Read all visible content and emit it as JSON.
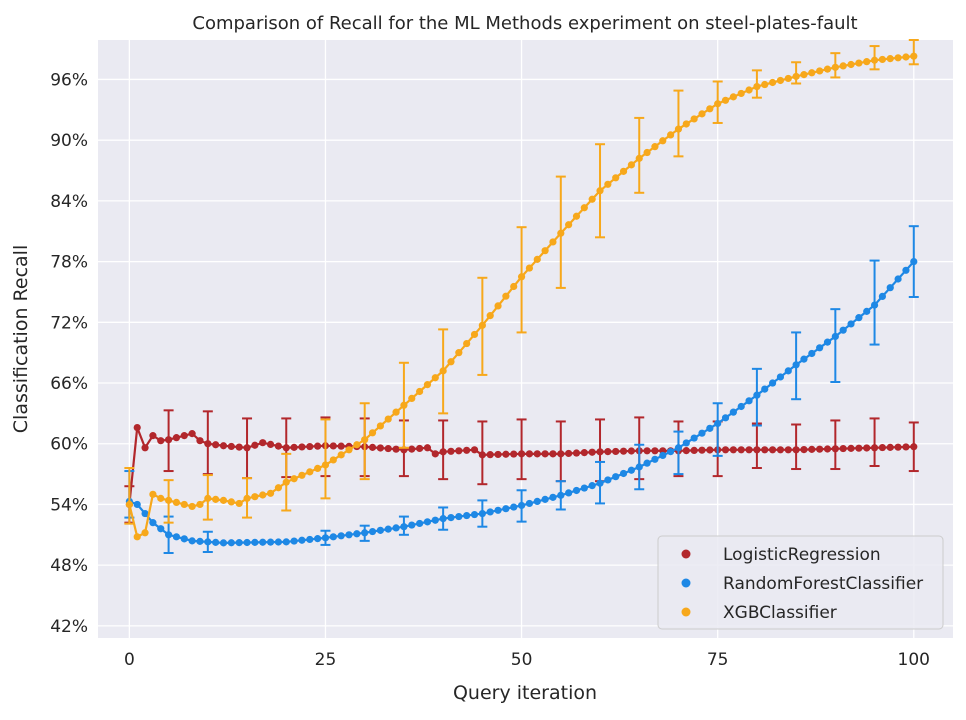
{
  "chart_data": {
    "type": "line",
    "title": "Comparison of Recall for the ML Methods experiment on steel-plates-fault",
    "xlabel": "Query iteration",
    "ylabel": "Classification Recall",
    "xlim": [
      -4,
      105
    ],
    "ylim": [
      0.408,
      0.999
    ],
    "x_ticks": [
      0,
      25,
      50,
      75,
      100
    ],
    "x_tick_labels": [
      "0",
      "25",
      "50",
      "75",
      "100"
    ],
    "y_ticks": [
      0.42,
      0.48,
      0.54,
      0.6,
      0.66,
      0.72,
      0.78,
      0.84,
      0.9,
      0.96
    ],
    "y_tick_labels": [
      "42%",
      "48%",
      "54%",
      "60%",
      "66%",
      "72%",
      "78%",
      "84%",
      "90%",
      "96%"
    ],
    "grid": true,
    "legend_position": "bottom-right",
    "error_bar_interval": 5,
    "series": [
      {
        "name": "LogisticRegression",
        "color": "#b2272c",
        "anchors": [
          [
            0,
            0.54
          ],
          [
            1,
            0.616
          ],
          [
            2,
            0.596
          ],
          [
            3,
            0.608
          ],
          [
            4,
            0.603
          ],
          [
            5,
            0.604
          ],
          [
            6,
            0.606
          ],
          [
            7,
            0.608
          ],
          [
            8,
            0.61
          ],
          [
            9,
            0.603
          ],
          [
            10,
            0.6
          ],
          [
            12,
            0.598
          ],
          [
            15,
            0.596
          ],
          [
            17,
            0.601
          ],
          [
            20,
            0.596
          ],
          [
            25,
            0.598
          ],
          [
            30,
            0.597
          ],
          [
            35,
            0.594
          ],
          [
            38,
            0.596
          ],
          [
            39,
            0.59
          ],
          [
            40,
            0.592
          ],
          [
            44,
            0.594
          ],
          [
            45,
            0.589
          ],
          [
            50,
            0.59
          ],
          [
            55,
            0.59
          ],
          [
            60,
            0.592
          ],
          [
            65,
            0.593
          ],
          [
            70,
            0.593
          ],
          [
            75,
            0.594
          ],
          [
            80,
            0.594
          ],
          [
            85,
            0.594
          ],
          [
            90,
            0.595
          ],
          [
            95,
            0.596
          ],
          [
            100,
            0.597
          ]
        ],
        "error_bars": [
          [
            0,
            0.522,
            0.558
          ],
          [
            5,
            0.573,
            0.633
          ],
          [
            10,
            0.57,
            0.632
          ],
          [
            15,
            0.566,
            0.625
          ],
          [
            20,
            0.567,
            0.625
          ],
          [
            25,
            0.568,
            0.626
          ],
          [
            30,
            0.568,
            0.625
          ],
          [
            35,
            0.568,
            0.623
          ],
          [
            40,
            0.565,
            0.623
          ],
          [
            45,
            0.56,
            0.622
          ],
          [
            50,
            0.565,
            0.624
          ],
          [
            55,
            0.563,
            0.622
          ],
          [
            60,
            0.563,
            0.624
          ],
          [
            65,
            0.565,
            0.626
          ],
          [
            70,
            0.568,
            0.622
          ],
          [
            75,
            0.568,
            0.622
          ],
          [
            80,
            0.576,
            0.62
          ],
          [
            85,
            0.575,
            0.619
          ],
          [
            90,
            0.575,
            0.623
          ],
          [
            95,
            0.578,
            0.625
          ],
          [
            100,
            0.573,
            0.621
          ]
        ]
      },
      {
        "name": "RandomForestClassifier",
        "color": "#1e88e5",
        "anchors": [
          [
            0,
            0.543
          ],
          [
            1,
            0.54
          ],
          [
            2,
            0.531
          ],
          [
            3,
            0.522
          ],
          [
            5,
            0.51
          ],
          [
            8,
            0.504
          ],
          [
            12,
            0.502
          ],
          [
            20,
            0.503
          ],
          [
            25,
            0.507
          ],
          [
            30,
            0.512
          ],
          [
            35,
            0.518
          ],
          [
            40,
            0.526
          ],
          [
            45,
            0.531
          ],
          [
            50,
            0.539
          ],
          [
            55,
            0.549
          ],
          [
            60,
            0.561
          ],
          [
            65,
            0.577
          ],
          [
            70,
            0.596
          ],
          [
            75,
            0.62
          ],
          [
            80,
            0.648
          ],
          [
            85,
            0.678
          ],
          [
            90,
            0.706
          ],
          [
            95,
            0.737
          ],
          [
            100,
            0.78
          ]
        ],
        "error_bars": [
          [
            0,
            0.527,
            0.573
          ],
          [
            5,
            0.492,
            0.528
          ],
          [
            10,
            0.493,
            0.513
          ],
          [
            25,
            0.5,
            0.514
          ],
          [
            30,
            0.504,
            0.519
          ],
          [
            35,
            0.51,
            0.528
          ],
          [
            40,
            0.515,
            0.537
          ],
          [
            45,
            0.518,
            0.544
          ],
          [
            50,
            0.523,
            0.554
          ],
          [
            55,
            0.535,
            0.563
          ],
          [
            60,
            0.541,
            0.582
          ],
          [
            65,
            0.555,
            0.599
          ],
          [
            70,
            0.57,
            0.612
          ],
          [
            75,
            0.588,
            0.64
          ],
          [
            80,
            0.618,
            0.674
          ],
          [
            85,
            0.644,
            0.71
          ],
          [
            90,
            0.661,
            0.733
          ],
          [
            95,
            0.698,
            0.781
          ],
          [
            100,
            0.745,
            0.815
          ]
        ]
      },
      {
        "name": "XGBClassifier",
        "color": "#f7a81b",
        "anchors": [
          [
            0,
            0.54
          ],
          [
            1,
            0.508
          ],
          [
            2,
            0.512
          ],
          [
            3,
            0.55
          ],
          [
            4,
            0.546
          ],
          [
            5,
            0.544
          ],
          [
            7,
            0.54
          ],
          [
            8,
            0.538
          ],
          [
            9,
            0.54
          ],
          [
            10,
            0.546
          ],
          [
            12,
            0.544
          ],
          [
            14,
            0.541
          ],
          [
            15,
            0.546
          ],
          [
            18,
            0.551
          ],
          [
            20,
            0.562
          ],
          [
            25,
            0.579
          ],
          [
            30,
            0.604
          ],
          [
            35,
            0.638
          ],
          [
            40,
            0.672
          ],
          [
            45,
            0.717
          ],
          [
            50,
            0.765
          ],
          [
            55,
            0.808
          ],
          [
            60,
            0.85
          ],
          [
            65,
            0.882
          ],
          [
            70,
            0.911
          ],
          [
            75,
            0.936
          ],
          [
            80,
            0.953
          ],
          [
            85,
            0.963
          ],
          [
            90,
            0.972
          ],
          [
            95,
            0.979
          ],
          [
            100,
            0.983
          ]
        ],
        "error_bars": [
          [
            0,
            0.521,
            0.576
          ],
          [
            5,
            0.522,
            0.564
          ],
          [
            10,
            0.525,
            0.569
          ],
          [
            15,
            0.527,
            0.566
          ],
          [
            20,
            0.534,
            0.59
          ],
          [
            25,
            0.546,
            0.624
          ],
          [
            30,
            0.565,
            0.64
          ],
          [
            35,
            0.596,
            0.68
          ],
          [
            40,
            0.63,
            0.713
          ],
          [
            45,
            0.668,
            0.764
          ],
          [
            50,
            0.71,
            0.814
          ],
          [
            55,
            0.754,
            0.864
          ],
          [
            60,
            0.804,
            0.896
          ],
          [
            65,
            0.848,
            0.922
          ],
          [
            70,
            0.884,
            0.949
          ],
          [
            75,
            0.917,
            0.958
          ],
          [
            80,
            0.942,
            0.969
          ],
          [
            85,
            0.956,
            0.977
          ],
          [
            90,
            0.962,
            0.986
          ],
          [
            95,
            0.97,
            0.993
          ],
          [
            100,
            0.975,
            0.999
          ]
        ]
      }
    ]
  }
}
